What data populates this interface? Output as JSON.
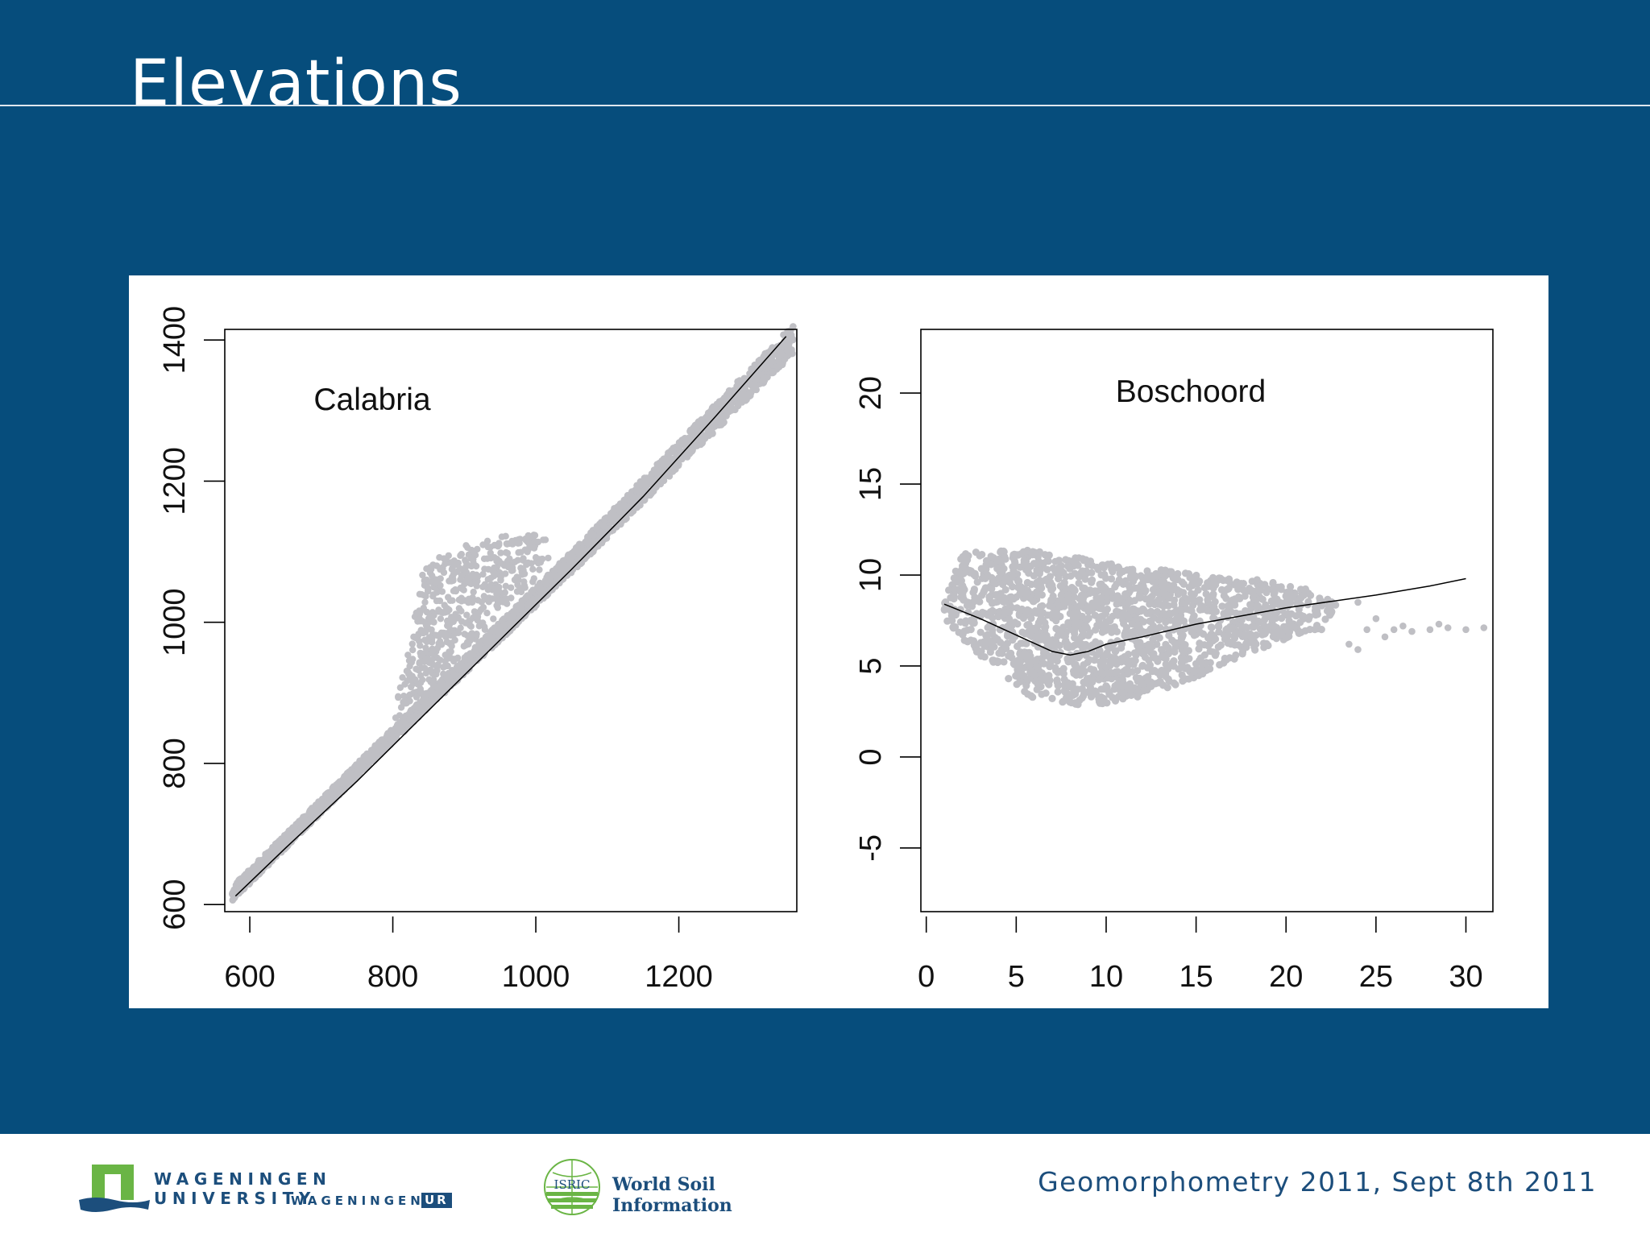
{
  "slide": {
    "title": "Elevations",
    "footer_note": "Geomorphometry 2011, Sept 8th 2011"
  },
  "logos": {
    "wur_line1": "WAGENINGEN UNIVERSITY",
    "wur_line2": "WAGENINGEN",
    "wur_badge": "UR",
    "isric_badge": "ISRIC",
    "isric_text": "World Soil Information"
  },
  "colors": {
    "background": "#064d7c",
    "points": "#bfbfc4",
    "fit_line": "#000000",
    "brand_blue": "#1c4e7c",
    "brand_green": "#6ab545"
  },
  "chart_data": [
    {
      "type": "scatter",
      "title": "Calabria",
      "xlabel": "",
      "ylabel": "",
      "xlim": [
        565,
        1365
      ],
      "ylim": [
        590,
        1415
      ],
      "xticks": [
        600,
        800,
        1000,
        1200
      ],
      "xtick_labels": [
        "600",
        "800",
        "1000",
        "1200"
      ],
      "yticks": [
        600,
        800,
        1000,
        1200,
        1400
      ],
      "ytick_labels": [
        "600",
        "800",
        "1000",
        "1200",
        "1400"
      ],
      "grid": false,
      "fit_line": {
        "x": [
          580,
          650,
          750,
          850,
          950,
          1050,
          1150,
          1250,
          1350
        ],
        "y": [
          612,
          680,
          775,
          875,
          975,
          1075,
          1178,
          1290,
          1405
        ]
      },
      "point_cloud": {
        "envelope": [
          {
            "x": [
              575,
              800
            ],
            "y_low": [
              605,
              830
            ],
            "y_high": [
              625,
              850
            ]
          },
          {
            "x": [
              800,
              1070
            ],
            "y_low": [
              830,
              1090
            ],
            "y_high": [
              850,
              1120
            ]
          },
          {
            "x": [
              1070,
              1360
            ],
            "y_low": [
              1090,
              1380
            ],
            "y_high": [
              1120,
              1422
            ]
          }
        ],
        "lobe": [
          [
            800,
            860
          ],
          [
            835,
            1030
          ],
          [
            840,
            1080
          ],
          [
            900,
            1110
          ],
          [
            950,
            1125
          ],
          [
            1000,
            1125
          ],
          [
            1030,
            1110
          ],
          [
            1000,
            1060
          ],
          [
            950,
            1010
          ],
          [
            900,
            960
          ],
          [
            850,
            900
          ]
        ]
      }
    },
    {
      "type": "scatter",
      "title": "Boschoord",
      "xlabel": "",
      "ylabel": "",
      "xlim": [
        -0.3,
        31.5
      ],
      "ylim": [
        -8.5,
        23.5
      ],
      "xticks": [
        0,
        5,
        10,
        15,
        20,
        25,
        30
      ],
      "xtick_labels": [
        "0",
        "5",
        "10",
        "15",
        "20",
        "25",
        "30"
      ],
      "yticks": [
        -5,
        0,
        5,
        10,
        15,
        20
      ],
      "ytick_labels": [
        "-5",
        "0",
        "5",
        "10",
        "15",
        "20"
      ],
      "grid": false,
      "fit_line": {
        "x": [
          1,
          3,
          5,
          7,
          8,
          9,
          10,
          12,
          15,
          20,
          25,
          28,
          30
        ],
        "y": [
          8.4,
          7.6,
          6.7,
          5.8,
          5.6,
          5.8,
          6.2,
          6.6,
          7.3,
          8.2,
          8.9,
          9.4,
          9.8
        ]
      },
      "point_cloud": {
        "polygon": [
          [
            1,
            8.5
          ],
          [
            2,
            11.2
          ],
          [
            5,
            11.5
          ],
          [
            8,
            11.0
          ],
          [
            12,
            10.5
          ],
          [
            15,
            10.0
          ],
          [
            18,
            9.8
          ],
          [
            20,
            9.5
          ],
          [
            22,
            9.0
          ],
          [
            23,
            8.3
          ],
          [
            22,
            7.0
          ],
          [
            20,
            6.5
          ],
          [
            17,
            5.3
          ],
          [
            15,
            4.3
          ],
          [
            12,
            3.2
          ],
          [
            9,
            2.8
          ],
          [
            6,
            3.2
          ],
          [
            4,
            4.5
          ],
          [
            2,
            6.5
          ],
          [
            1,
            7.5
          ]
        ],
        "outliers": [
          [
            24,
            8.5
          ],
          [
            24.5,
            7.0
          ],
          [
            25,
            7.6
          ],
          [
            25.5,
            6.6
          ],
          [
            26,
            7.0
          ],
          [
            26.5,
            7.2
          ],
          [
            27,
            6.9
          ],
          [
            28,
            7.0
          ],
          [
            28.5,
            7.3
          ],
          [
            29,
            7.1
          ],
          [
            30,
            7.0
          ],
          [
            31,
            7.1
          ],
          [
            23.5,
            6.2
          ],
          [
            24,
            5.9
          ]
        ]
      }
    }
  ]
}
